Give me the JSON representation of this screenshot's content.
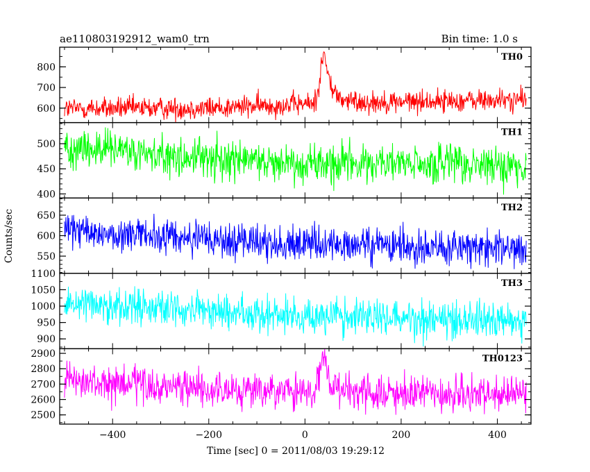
{
  "header": {
    "left_title": "ae110803192912_wam0_trn",
    "right_title": "Bin time: 1.0 s"
  },
  "axes": {
    "xlabel": "Time [sec] 0 = 2011/08/03 19:29:12",
    "ylabel": "Counts/sec"
  },
  "chart_data": {
    "type": "line",
    "x_range": [
      -510,
      470
    ],
    "x_ticks": [
      -400,
      -200,
      0,
      200,
      400
    ],
    "bin_time_s": 1.0,
    "x_start": -500,
    "x_end": 460,
    "panels": [
      {
        "name": "TH0",
        "color": "#ff0000",
        "ylim": [
          530,
          895
        ],
        "yticks": [
          600,
          700,
          800
        ],
        "baseline": [
          [
            -500,
            598
          ],
          [
            -200,
            600
          ],
          [
            0,
            620
          ],
          [
            100,
            628
          ],
          [
            460,
            640
          ]
        ],
        "noise_sd": 27,
        "peaks": [
          {
            "t": 40,
            "amp": 240,
            "rise": 8,
            "decay": 14
          }
        ]
      },
      {
        "name": "TH1",
        "color": "#00ff00",
        "ylim": [
          392,
          542
        ],
        "yticks": [
          400,
          450,
          500
        ],
        "baseline": [
          [
            -500,
            495
          ],
          [
            -300,
            475
          ],
          [
            0,
            462
          ],
          [
            460,
            455
          ]
        ],
        "noise_sd": 20,
        "peaks": []
      },
      {
        "name": "TH2",
        "color": "#0000ff",
        "ylim": [
          508,
          692
        ],
        "yticks": [
          550,
          600,
          650
        ],
        "baseline": [
          [
            -500,
            612
          ],
          [
            -200,
            590
          ],
          [
            0,
            578
          ],
          [
            460,
            568
          ]
        ],
        "noise_sd": 22,
        "peaks": []
      },
      {
        "name": "TH3",
        "color": "#00ffff",
        "ylim": [
          870,
          1100
        ],
        "yticks": [
          900,
          950,
          1000,
          1050,
          1100
        ],
        "baseline": [
          [
            -500,
            1015
          ],
          [
            -200,
            985
          ],
          [
            0,
            970
          ],
          [
            460,
            958
          ]
        ],
        "noise_sd": 28,
        "peaks": []
      },
      {
        "name": "TH0123",
        "color": "#ff00ff",
        "ylim": [
          2440,
          2930
        ],
        "yticks": [
          2500,
          2600,
          2700,
          2800,
          2900
        ],
        "baseline": [
          [
            -500,
            2715
          ],
          [
            -200,
            2665
          ],
          [
            0,
            2640
          ],
          [
            460,
            2625
          ]
        ],
        "noise_sd": 58,
        "peaks": [
          {
            "t": 40,
            "amp": 230,
            "rise": 8,
            "decay": 16
          }
        ]
      }
    ]
  }
}
